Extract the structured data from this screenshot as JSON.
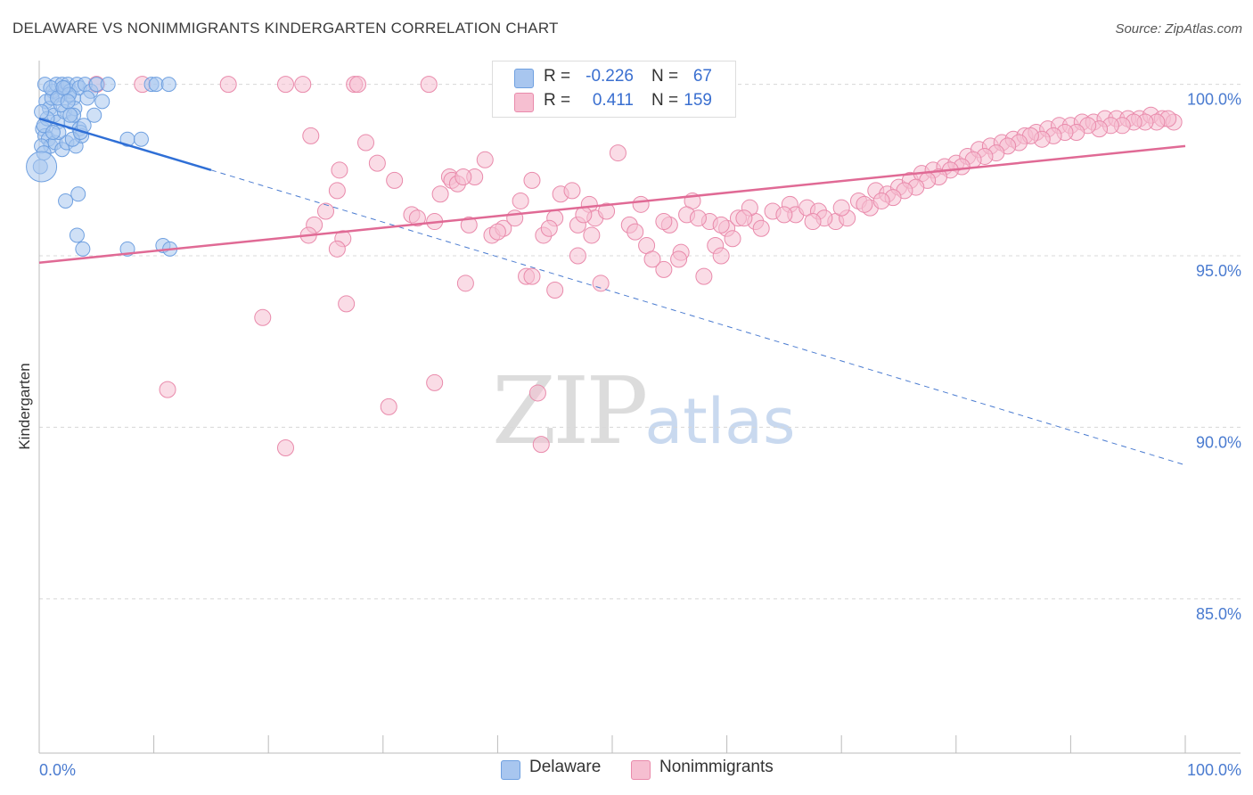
{
  "title": "DELAWARE VS NONIMMIGRANTS KINDERGARTEN CORRELATION CHART",
  "source": "Source: ZipAtlas.com",
  "watermark": {
    "zip": "ZIP",
    "atlas": "atlas"
  },
  "colors": {
    "delaware": "#6fa0e0",
    "delaware_fill": "#a8c6ef",
    "nonimmigrants": "#e98aab",
    "nonimmigrants_fill": "#f6bfd1",
    "accent": "#4a7bd0"
  },
  "legend": {
    "rows": [
      {
        "series": "Delaware",
        "r_label": "R =",
        "r_value": "-0.226",
        "n_label": "N =",
        "n_value": "67"
      },
      {
        "series": "Nonimmigrants",
        "r_label": "R =",
        "r_value": "0.411",
        "n_label": "N =",
        "n_value": "159"
      }
    ],
    "bottom": [
      "Delaware",
      "Nonimmigrants"
    ]
  },
  "chart_data": {
    "type": "scatter",
    "title": "DELAWARE VS NONIMMIGRANTS KINDERGARTEN CORRELATION CHART",
    "xlabel": "",
    "ylabel": "Kindergarten",
    "xlim": [
      0,
      100
    ],
    "ylim": [
      80.5,
      100.9
    ],
    "x_tick_labels": [
      "0.0%",
      "100.0%"
    ],
    "y_ticks": [
      85,
      90,
      95,
      100
    ],
    "y_tick_labels": [
      "85.0%",
      "90.0%",
      "95.0%",
      "100.0%"
    ],
    "grid": true,
    "series": [
      {
        "name": "Delaware",
        "r": -0.226,
        "n": 67,
        "trend": {
          "x": [
            0,
            15
          ],
          "y": [
            99.0,
            97.5
          ],
          "dashed_extension_to": [
            100,
            88.9
          ]
        },
        "points": [
          [
            0.5,
            100.0
          ],
          [
            1.2,
            99.8
          ],
          [
            1.5,
            100.0
          ],
          [
            1.8,
            99.7
          ],
          [
            2.0,
            100.0
          ],
          [
            2.3,
            99.9
          ],
          [
            2.5,
            100.0
          ],
          [
            2.7,
            99.8
          ],
          [
            3.0,
            99.6
          ],
          [
            3.3,
            100.0
          ],
          [
            3.5,
            99.9
          ],
          [
            4.0,
            100.0
          ],
          [
            4.5,
            99.8
          ],
          [
            5.0,
            100.0
          ],
          [
            5.5,
            99.5
          ],
          [
            6.0,
            100.0
          ],
          [
            9.8,
            100.0
          ],
          [
            10.2,
            100.0
          ],
          [
            11.3,
            100.0
          ],
          [
            0.6,
            99.5
          ],
          [
            0.9,
            99.3
          ],
          [
            1.3,
            99.1
          ],
          [
            1.6,
            98.9
          ],
          [
            2.2,
            99.2
          ],
          [
            2.8,
            98.9
          ],
          [
            3.5,
            98.7
          ],
          [
            0.3,
            98.7
          ],
          [
            0.5,
            98.5
          ],
          [
            0.8,
            98.4
          ],
          [
            1.0,
            98.2
          ],
          [
            0.2,
            98.2
          ],
          [
            0.4,
            98.0
          ],
          [
            1.4,
            98.3
          ],
          [
            2.0,
            98.1
          ],
          [
            2.4,
            98.3
          ],
          [
            3.2,
            98.2
          ],
          [
            3.7,
            98.5
          ],
          [
            7.7,
            98.4
          ],
          [
            8.9,
            98.4
          ],
          [
            0.1,
            97.6
          ],
          [
            2.3,
            96.6
          ],
          [
            3.4,
            96.8
          ],
          [
            3.3,
            95.6
          ],
          [
            3.8,
            95.2
          ],
          [
            7.7,
            95.2
          ],
          [
            10.8,
            95.3
          ],
          [
            11.4,
            95.2
          ],
          [
            1.1,
            99.6
          ],
          [
            1.9,
            99.4
          ],
          [
            2.6,
            99.7
          ],
          [
            3.1,
            99.3
          ],
          [
            4.2,
            99.6
          ],
          [
            4.8,
            99.1
          ],
          [
            0.7,
            99.0
          ],
          [
            1.7,
            98.6
          ],
          [
            2.9,
            98.4
          ],
          [
            3.6,
            98.6
          ],
          [
            0.2,
            99.2
          ],
          [
            1.0,
            99.9
          ],
          [
            1.6,
            99.6
          ],
          [
            2.1,
            99.9
          ],
          [
            2.5,
            99.5
          ],
          [
            3.0,
            99.1
          ],
          [
            3.9,
            98.8
          ],
          [
            0.4,
            98.8
          ],
          [
            1.2,
            98.6
          ],
          [
            2.7,
            99.1
          ]
        ],
        "large_point": [
          0.2,
          97.6
        ]
      },
      {
        "name": "Nonimmigrants",
        "r": 0.411,
        "n": 159,
        "trend": {
          "x": [
            0,
            100
          ],
          "y": [
            94.8,
            98.2
          ]
        },
        "points": [
          [
            5.0,
            100.0
          ],
          [
            9.0,
            100.0
          ],
          [
            16.5,
            100.0
          ],
          [
            21.5,
            100.0
          ],
          [
            23.0,
            100.0
          ],
          [
            27.5,
            100.0
          ],
          [
            27.8,
            100.0
          ],
          [
            34.0,
            100.0
          ],
          [
            23.7,
            98.5
          ],
          [
            28.5,
            98.3
          ],
          [
            35.8,
            97.3
          ],
          [
            38.9,
            97.8
          ],
          [
            50.5,
            98.0
          ],
          [
            29.5,
            97.7
          ],
          [
            26.2,
            97.5
          ],
          [
            31.0,
            97.2
          ],
          [
            36.0,
            97.2
          ],
          [
            36.5,
            97.1
          ],
          [
            38.0,
            97.3
          ],
          [
            37.0,
            97.3
          ],
          [
            43.0,
            97.2
          ],
          [
            26.0,
            96.9
          ],
          [
            35.0,
            96.8
          ],
          [
            45.5,
            96.8
          ],
          [
            46.5,
            96.9
          ],
          [
            42.0,
            96.6
          ],
          [
            48.0,
            96.5
          ],
          [
            52.5,
            96.5
          ],
          [
            57.0,
            96.6
          ],
          [
            32.5,
            96.2
          ],
          [
            33.0,
            96.1
          ],
          [
            25.0,
            96.3
          ],
          [
            24.0,
            95.9
          ],
          [
            34.5,
            96.0
          ],
          [
            39.5,
            95.6
          ],
          [
            40.5,
            95.8
          ],
          [
            44.0,
            95.6
          ],
          [
            48.5,
            96.1
          ],
          [
            51.5,
            95.9
          ],
          [
            52.0,
            95.7
          ],
          [
            55.0,
            95.9
          ],
          [
            56.5,
            96.2
          ],
          [
            58.5,
            96.0
          ],
          [
            60.0,
            95.8
          ],
          [
            61.0,
            96.1
          ],
          [
            62.5,
            96.0
          ],
          [
            64.0,
            96.3
          ],
          [
            65.5,
            96.5
          ],
          [
            23.5,
            95.6
          ],
          [
            26.5,
            95.5
          ],
          [
            26.0,
            95.2
          ],
          [
            40.0,
            95.7
          ],
          [
            47.0,
            95.9
          ],
          [
            48.2,
            95.6
          ],
          [
            53.0,
            95.3
          ],
          [
            56.0,
            95.1
          ],
          [
            59.0,
            95.3
          ],
          [
            60.5,
            95.5
          ],
          [
            63.0,
            95.8
          ],
          [
            66.0,
            96.2
          ],
          [
            67.0,
            96.4
          ],
          [
            68.0,
            96.3
          ],
          [
            69.5,
            96.0
          ],
          [
            70.5,
            96.1
          ],
          [
            71.5,
            96.6
          ],
          [
            72.5,
            96.4
          ],
          [
            73.0,
            96.9
          ],
          [
            74.0,
            96.8
          ],
          [
            75.0,
            97.0
          ],
          [
            76.0,
            97.2
          ],
          [
            77.0,
            97.4
          ],
          [
            78.0,
            97.5
          ],
          [
            79.0,
            97.6
          ],
          [
            80.0,
            97.7
          ],
          [
            81.0,
            97.9
          ],
          [
            82.0,
            98.1
          ],
          [
            83.0,
            98.2
          ],
          [
            84.0,
            98.3
          ],
          [
            85.0,
            98.4
          ],
          [
            86.0,
            98.5
          ],
          [
            87.0,
            98.6
          ],
          [
            88.0,
            98.7
          ],
          [
            89.0,
            98.8
          ],
          [
            90.0,
            98.8
          ],
          [
            91.0,
            98.9
          ],
          [
            92.0,
            98.9
          ],
          [
            93.0,
            99.0
          ],
          [
            94.0,
            99.0
          ],
          [
            95.0,
            99.0
          ],
          [
            96.0,
            99.0
          ],
          [
            97.0,
            99.1
          ],
          [
            98.0,
            99.0
          ],
          [
            99.0,
            98.9
          ],
          [
            98.5,
            99.0
          ],
          [
            97.5,
            98.9
          ],
          [
            96.5,
            98.9
          ],
          [
            95.5,
            98.9
          ],
          [
            94.5,
            98.8
          ],
          [
            93.5,
            98.8
          ],
          [
            92.5,
            98.7
          ],
          [
            91.5,
            98.8
          ],
          [
            90.5,
            98.6
          ],
          [
            89.5,
            98.6
          ],
          [
            88.5,
            98.5
          ],
          [
            87.5,
            98.4
          ],
          [
            86.5,
            98.5
          ],
          [
            85.5,
            98.3
          ],
          [
            84.5,
            98.2
          ],
          [
            83.5,
            98.0
          ],
          [
            82.5,
            97.9
          ],
          [
            81.5,
            97.8
          ],
          [
            80.5,
            97.6
          ],
          [
            79.5,
            97.5
          ],
          [
            78.5,
            97.3
          ],
          [
            77.5,
            97.2
          ],
          [
            76.5,
            97.0
          ],
          [
            75.5,
            96.9
          ],
          [
            74.5,
            96.7
          ],
          [
            73.5,
            96.6
          ],
          [
            72.0,
            96.5
          ],
          [
            70.0,
            96.4
          ],
          [
            68.5,
            96.1
          ],
          [
            67.5,
            96.0
          ],
          [
            65.0,
            96.2
          ],
          [
            62.0,
            96.4
          ],
          [
            61.5,
            96.1
          ],
          [
            59.5,
            95.9
          ],
          [
            57.5,
            96.1
          ],
          [
            54.5,
            96.0
          ],
          [
            49.5,
            96.3
          ],
          [
            47.5,
            96.2
          ],
          [
            45.0,
            96.1
          ],
          [
            44.5,
            95.8
          ],
          [
            41.5,
            96.1
          ],
          [
            37.5,
            95.9
          ],
          [
            37.2,
            94.2
          ],
          [
            42.5,
            94.4
          ],
          [
            43.0,
            94.4
          ],
          [
            45.0,
            94.0
          ],
          [
            49.0,
            94.2
          ],
          [
            58.0,
            94.4
          ],
          [
            54.5,
            94.6
          ],
          [
            53.5,
            94.9
          ],
          [
            55.8,
            94.9
          ],
          [
            59.5,
            95.0
          ],
          [
            47.0,
            95.0
          ],
          [
            26.8,
            93.6
          ],
          [
            19.5,
            93.2
          ],
          [
            11.2,
            91.1
          ],
          [
            34.5,
            91.3
          ],
          [
            43.5,
            91.0
          ],
          [
            30.5,
            90.6
          ],
          [
            21.5,
            89.4
          ],
          [
            43.8,
            89.5
          ]
        ]
      }
    ]
  }
}
